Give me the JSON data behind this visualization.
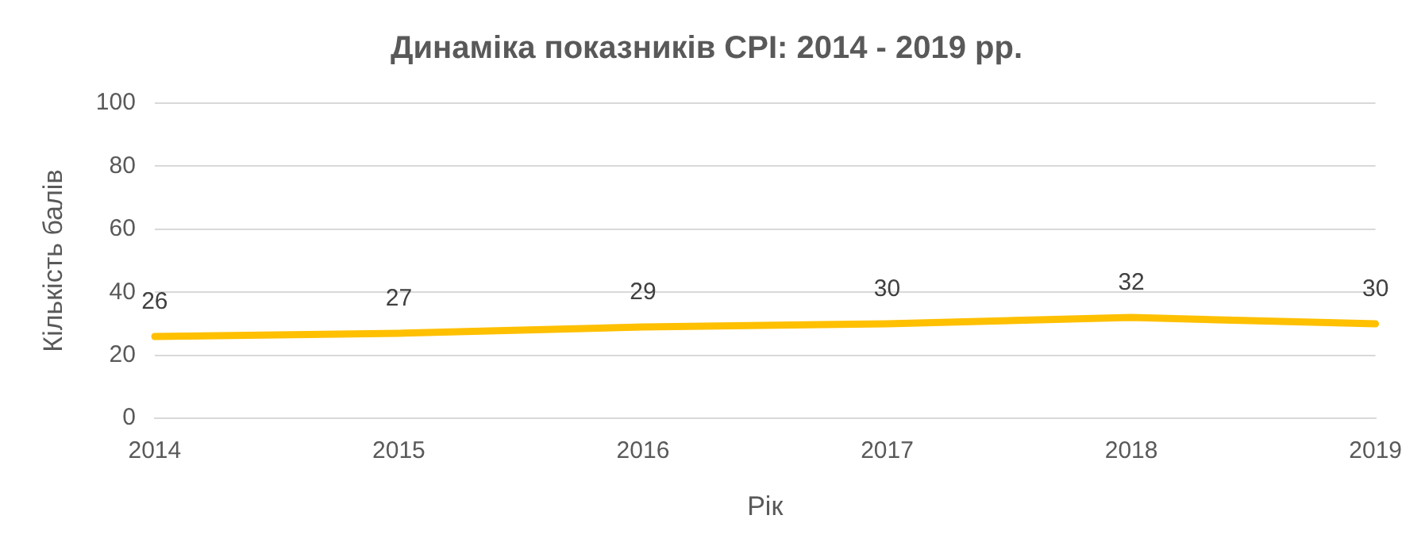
{
  "chart_data": {
    "type": "line",
    "title": "Динаміка показників CPI: 2014 - 2019 рр.",
    "xlabel": "Рік",
    "ylabel": "Кількість балів",
    "categories": [
      "2014",
      "2015",
      "2016",
      "2017",
      "2018",
      "2019"
    ],
    "series": [
      {
        "color": "#ffc000",
        "values": [
          26,
          27,
          29,
          30,
          32,
          30
        ]
      }
    ],
    "ylim": [
      0,
      100
    ],
    "yticks": [
      0,
      20,
      40,
      60,
      80,
      100
    ],
    "grid": "y",
    "data_labels": true,
    "marker": "none",
    "line_style": "solid",
    "legend": false
  }
}
